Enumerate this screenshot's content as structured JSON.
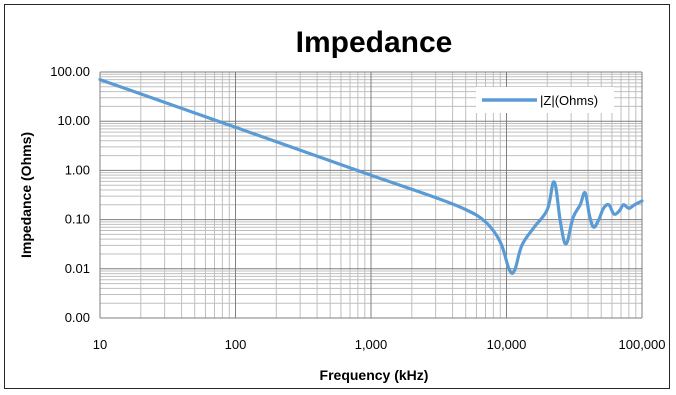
{
  "chart_data": {
    "type": "line",
    "title": "Impedance",
    "xlabel": "Frequency (kHz)",
    "ylabel": "Impedance (Ohms)",
    "x_scale": "log",
    "y_scale": "log",
    "xlim": [
      10,
      100000
    ],
    "ylim": [
      0.001,
      100
    ],
    "x_tick_labels": [
      "10",
      "100",
      "1,000",
      "10,000",
      "100,000"
    ],
    "x_tick_values": [
      10,
      100,
      1000,
      10000,
      100000
    ],
    "y_tick_labels": [
      "0.00",
      "0.01",
      "0.10",
      "1.00",
      "10.00",
      "100.00"
    ],
    "y_tick_values": [
      0.001,
      0.01,
      0.1,
      1,
      10,
      100
    ],
    "grid": true,
    "legend_position": "top-right",
    "series": [
      {
        "name": "|Z|(Ohms)",
        "color": "#5B9BD5",
        "x": [
          10,
          100,
          1000,
          3000,
          5000,
          7000,
          9000,
          10500,
          11500,
          13000,
          16000,
          20000,
          22500,
          25000,
          27500,
          31000,
          35000,
          38000,
          41000,
          44000,
          48000,
          52000,
          57000,
          62000,
          68000,
          73000,
          80000,
          88000,
          100000
        ],
        "y": [
          70,
          7.5,
          0.8,
          0.28,
          0.16,
          0.09,
          0.035,
          0.0095,
          0.0095,
          0.03,
          0.07,
          0.16,
          0.58,
          0.09,
          0.032,
          0.11,
          0.2,
          0.35,
          0.12,
          0.07,
          0.1,
          0.17,
          0.2,
          0.13,
          0.15,
          0.2,
          0.17,
          0.2,
          0.24
        ]
      }
    ]
  }
}
